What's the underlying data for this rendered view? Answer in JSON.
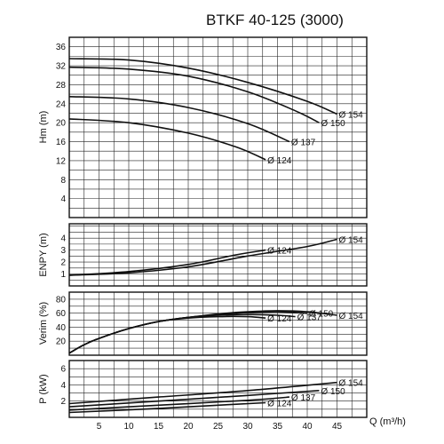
{
  "title": "BTKF 40-125 (3000)",
  "chart_data": {
    "type": "line",
    "x_axis": {
      "label": "Q (m³/h)",
      "range": [
        0,
        50
      ],
      "ticks": [
        5,
        10,
        15,
        20,
        25,
        30,
        35,
        40,
        45
      ],
      "grid_step": 2.5
    },
    "panels": [
      {
        "id": "head",
        "ylabel": "Hm (m)",
        "ylim": [
          0,
          38
        ],
        "ticks": [
          4,
          8,
          12,
          16,
          20,
          24,
          28,
          32,
          36
        ],
        "grid_step": 2,
        "series": [
          {
            "name": "Ø 154",
            "points": [
              [
                0,
                33.5
              ],
              [
                10,
                33.2
              ],
              [
                20,
                31.5
              ],
              [
                30,
                28.5
              ],
              [
                40,
                24.5
              ],
              [
                45,
                21.8
              ]
            ],
            "label_at": [
              45,
              21.8
            ]
          },
          {
            "name": "Ø 150",
            "points": [
              [
                0,
                31.7
              ],
              [
                10,
                31.3
              ],
              [
                20,
                29.8
              ],
              [
                30,
                26.5
              ],
              [
                38,
                22.5
              ],
              [
                42,
                20.0
              ]
            ],
            "label_at": [
              42,
              20.0
            ]
          },
          {
            "name": "Ø 137",
            "points": [
              [
                0,
                25.5
              ],
              [
                10,
                25.0
              ],
              [
                20,
                23.2
              ],
              [
                30,
                19.8
              ],
              [
                37,
                16.0
              ]
            ],
            "label_at": [
              37,
              16.0
            ]
          },
          {
            "name": "Ø 124",
            "points": [
              [
                0,
                20.8
              ],
              [
                10,
                20.0
              ],
              [
                20,
                17.8
              ],
              [
                28,
                14.9
              ],
              [
                33,
                12.2
              ]
            ],
            "label_at": [
              33,
              12.2
            ]
          }
        ]
      },
      {
        "id": "npsh",
        "ylabel": "ENPY (m)",
        "ylim": [
          0,
          5.2
        ],
        "ticks": [
          1,
          2,
          3,
          4
        ],
        "grid_step": 0.5,
        "series": [
          {
            "name": "Ø 154",
            "points": [
              [
                0,
                0.9
              ],
              [
                10,
                1.1
              ],
              [
                20,
                1.6
              ],
              [
                30,
                2.5
              ],
              [
                40,
                3.3
              ],
              [
                45,
                3.9
              ]
            ],
            "label_at": [
              45,
              3.9
            ]
          },
          {
            "name": "Ø 124",
            "points": [
              [
                0,
                0.9
              ],
              [
                10,
                1.2
              ],
              [
                20,
                1.8
              ],
              [
                28,
                2.6
              ],
              [
                33,
                3.0
              ]
            ],
            "label_at": [
              33,
              3.0
            ]
          }
        ]
      },
      {
        "id": "efficiency",
        "ylabel": "Verim (%)",
        "ylim": [
          0,
          90
        ],
        "ticks": [
          20,
          40,
          60,
          80
        ],
        "grid_step": 10,
        "series": [
          {
            "name": "Ø 154",
            "points": [
              [
                0,
                3
              ],
              [
                2.5,
                15
              ],
              [
                5,
                24
              ],
              [
                10,
                38
              ],
              [
                15,
                48
              ],
              [
                20,
                54
              ],
              [
                25,
                59
              ],
              [
                30,
                62
              ],
              [
                35,
                63.5
              ],
              [
                40,
                62
              ],
              [
                45,
                57
              ]
            ],
            "label_at": [
              45,
              57
            ]
          },
          {
            "name": "Ø 150",
            "points": [
              [
                0,
                3
              ],
              [
                2.5,
                15
              ],
              [
                5,
                24
              ],
              [
                10,
                38
              ],
              [
                15,
                48
              ],
              [
                20,
                54
              ],
              [
                25,
                58
              ],
              [
                30,
                61
              ],
              [
                35,
                62
              ],
              [
                40,
                60
              ]
            ],
            "label_at": [
              40,
              60
            ]
          },
          {
            "name": "Ø 137",
            "points": [
              [
                0,
                3
              ],
              [
                2.5,
                15
              ],
              [
                5,
                24
              ],
              [
                10,
                38
              ],
              [
                15,
                48
              ],
              [
                20,
                54
              ],
              [
                25,
                57
              ],
              [
                30,
                58
              ],
              [
                35,
                57
              ],
              [
                38,
                55
              ]
            ],
            "label_at": [
              38,
              55
            ]
          },
          {
            "name": "Ø 124",
            "points": [
              [
                0,
                3
              ],
              [
                2.5,
                15
              ],
              [
                5,
                24
              ],
              [
                10,
                38
              ],
              [
                15,
                48
              ],
              [
                20,
                53
              ],
              [
                25,
                55
              ],
              [
                30,
                55
              ],
              [
                33,
                53
              ]
            ],
            "label_at": [
              33,
              53
            ]
          }
        ]
      },
      {
        "id": "power",
        "ylabel": "P (kW)",
        "ylim": [
          0,
          7
        ],
        "ticks": [
          2,
          4,
          6
        ],
        "grid_step": 1,
        "series": [
          {
            "name": "Ø 154",
            "points": [
              [
                0,
                1.7
              ],
              [
                15,
                2.5
              ],
              [
                30,
                3.3
              ],
              [
                45,
                4.3
              ]
            ],
            "label_at": [
              45,
              4.3
            ]
          },
          {
            "name": "Ø 150",
            "points": [
              [
                0,
                1.3
              ],
              [
                15,
                2.0
              ],
              [
                30,
                2.7
              ],
              [
                42,
                3.3
              ]
            ],
            "label_at": [
              42,
              3.3
            ]
          },
          {
            "name": "Ø 137",
            "points": [
              [
                0,
                0.9
              ],
              [
                15,
                1.5
              ],
              [
                30,
                2.1
              ],
              [
                37,
                2.5
              ]
            ],
            "label_at": [
              37,
              2.5
            ]
          },
          {
            "name": "Ø 124",
            "points": [
              [
                0,
                0.6
              ],
              [
                15,
                1.1
              ],
              [
                25,
                1.5
              ],
              [
                33,
                1.8
              ]
            ],
            "label_at": [
              33,
              1.8
            ]
          }
        ]
      }
    ]
  }
}
